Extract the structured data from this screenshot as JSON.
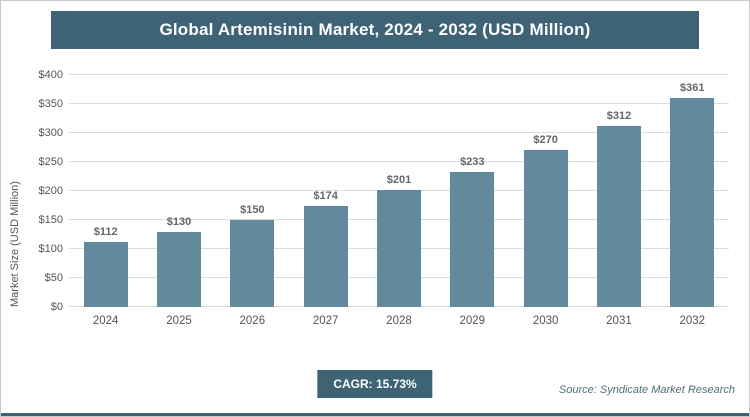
{
  "header": {
    "title": "Global Artemisinin Market, 2024 - 2032 (USD Million)"
  },
  "chart_data": {
    "type": "bar",
    "title": "Global Artemisinin Market, 2024 - 2032 (USD Million)",
    "categories": [
      "2024",
      "2025",
      "2026",
      "2027",
      "2028",
      "2029",
      "2030",
      "2031",
      "2032"
    ],
    "values": [
      112,
      130,
      150,
      174,
      201,
      233,
      270,
      312,
      361
    ],
    "value_prefix": "$",
    "xlabel": "",
    "ylabel": "Market Size (USD Million)",
    "ylim": [
      0,
      400
    ],
    "ytick_step": 50,
    "ytick_prefix": "$",
    "grid": true,
    "legend": "none",
    "bar_color": "#62899c",
    "accent_color": "#3d6374"
  },
  "footer": {
    "cagr_label": "CAGR: 15.73%",
    "source": "Source: Syndicate Market Research"
  }
}
